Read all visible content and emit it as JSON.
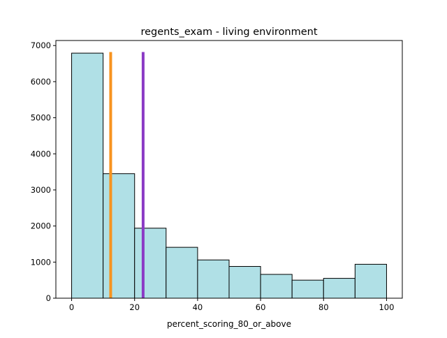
{
  "chart_data": {
    "type": "bar",
    "title": "regents_exam - living environment",
    "xlabel": "percent_scoring_80_or_above",
    "ylabel": "",
    "xlim": [
      -5,
      105
    ],
    "ylim": [
      0,
      7140
    ],
    "x_ticks": [
      0,
      20,
      40,
      60,
      80,
      100
    ],
    "y_ticks": [
      0,
      1000,
      2000,
      3000,
      4000,
      5000,
      6000,
      7000
    ],
    "bins": [
      {
        "start": 0,
        "end": 10,
        "count": 6790
      },
      {
        "start": 10,
        "end": 20,
        "count": 3450
      },
      {
        "start": 20,
        "end": 30,
        "count": 1940
      },
      {
        "start": 30,
        "end": 40,
        "count": 1410
      },
      {
        "start": 40,
        "end": 50,
        "count": 1060
      },
      {
        "start": 50,
        "end": 60,
        "count": 880
      },
      {
        "start": 60,
        "end": 70,
        "count": 660
      },
      {
        "start": 70,
        "end": 80,
        "count": 500
      },
      {
        "start": 80,
        "end": 90,
        "count": 550
      },
      {
        "start": 90,
        "end": 100,
        "count": 940
      }
    ],
    "vlines": [
      {
        "x": 12.4,
        "color": "#f7931e"
      },
      {
        "x": 22.7,
        "color": "#8b3ac5"
      }
    ],
    "bar_color": "#b0e0e6",
    "bar_edge_color": "#000000",
    "grid": false
  }
}
